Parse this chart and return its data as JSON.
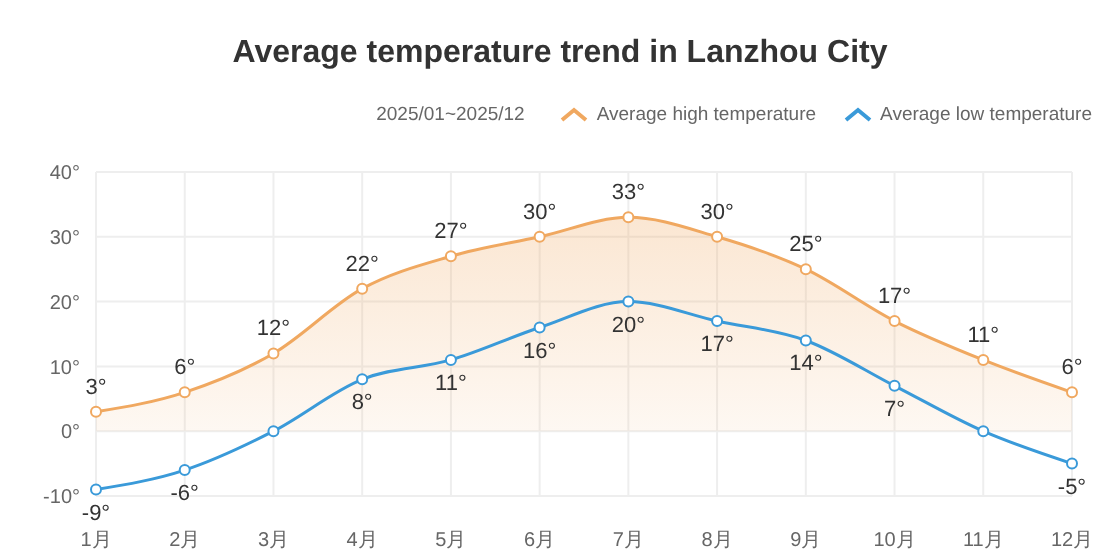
{
  "chart_data": {
    "type": "area",
    "title": "Average temperature trend in Lanzhou City",
    "annotations": [
      "2025/01~2025/12"
    ],
    "categories": [
      "1月",
      "2月",
      "3月",
      "4月",
      "5月",
      "6月",
      "7月",
      "8月",
      "9月",
      "10月",
      "11月",
      "12月"
    ],
    "series": [
      {
        "name": "Average high temperature",
        "color": "#f0a860",
        "values": [
          3,
          6,
          12,
          22,
          27,
          30,
          33,
          30,
          25,
          17,
          11,
          6
        ],
        "value_labels": [
          "3°",
          "6°",
          "12°",
          "22°",
          "27°",
          "30°",
          "33°",
          "30°",
          "25°",
          "17°",
          "11°",
          "6°"
        ]
      },
      {
        "name": "Average low temperature",
        "type": "line",
        "color": "#3a9ad9",
        "values": [
          -9,
          -6,
          0,
          8,
          11,
          16,
          20,
          17,
          14,
          7,
          0,
          -5
        ],
        "value_labels": [
          "-9°",
          "-6°",
          null,
          "8°",
          "11°",
          "16°",
          "20°",
          "17°",
          "14°",
          "7°",
          null,
          "-5°"
        ]
      }
    ],
    "ylim": [
      -10,
      40
    ],
    "yticks": [
      {
        "value": -10,
        "label": "-10°"
      },
      {
        "value": 0,
        "label": "0°"
      },
      {
        "value": 10,
        "label": "10°"
      },
      {
        "value": 20,
        "label": "20°"
      },
      {
        "value": 30,
        "label": "30°"
      },
      {
        "value": 40,
        "label": "40°"
      }
    ],
    "grid": true,
    "legend": "top right",
    "marker": "circle",
    "line_style": "solid"
  }
}
